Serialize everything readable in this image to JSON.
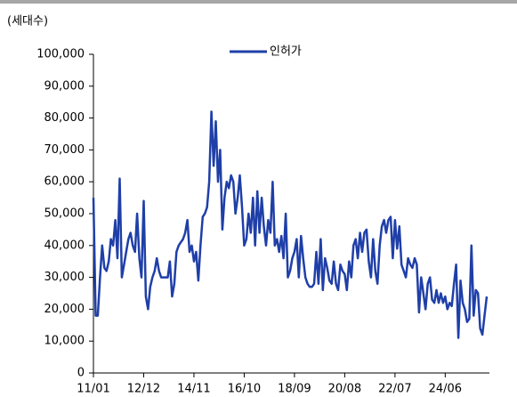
{
  "chart_data": {
    "type": "line",
    "y_axis_label": "(세대수)",
    "categories": [
      "11/01",
      null,
      null,
      null,
      null,
      null,
      null,
      null,
      null,
      null,
      null,
      null,
      null,
      null,
      null,
      null,
      null,
      null,
      null,
      null,
      null,
      null,
      null,
      "12/12",
      null,
      null,
      null,
      null,
      null,
      null,
      null,
      null,
      null,
      null,
      null,
      null,
      null,
      null,
      null,
      null,
      null,
      null,
      null,
      null,
      null,
      null,
      "14/11",
      null,
      null,
      null,
      null,
      null,
      null,
      null,
      null,
      null,
      null,
      null,
      null,
      null,
      null,
      null,
      null,
      null,
      null,
      null,
      null,
      null,
      null,
      "16/10",
      null,
      null,
      null,
      null,
      null,
      null,
      null,
      null,
      null,
      null,
      null,
      null,
      null,
      null,
      null,
      null,
      null,
      null,
      null,
      null,
      null,
      null,
      "18/09",
      null,
      null,
      null,
      null,
      null,
      null,
      null,
      null,
      null,
      null,
      null,
      null,
      null,
      null,
      null,
      null,
      null,
      null,
      null,
      null,
      null,
      null,
      "20/08",
      null,
      null,
      null,
      null,
      null,
      null,
      null,
      null,
      null,
      null,
      null,
      null,
      null,
      null,
      null,
      null,
      null,
      null,
      null,
      null,
      null,
      null,
      "22/07",
      null,
      null,
      null,
      null,
      null,
      null,
      null,
      null,
      null,
      null,
      null,
      null,
      null,
      null,
      null,
      null,
      null,
      null,
      null,
      null,
      null,
      null,
      "24/06",
      null,
      null,
      null,
      null,
      null,
      null,
      null,
      null,
      null,
      null,
      null,
      null,
      null,
      null,
      null,
      null,
      null,
      null,
      null
    ],
    "series": [
      {
        "name": "인허가",
        "color": "#1f3fa8",
        "values": [
          55000,
          18000,
          18000,
          30000,
          40000,
          33000,
          32000,
          35000,
          42000,
          40000,
          48000,
          36000,
          61000,
          30000,
          34000,
          38000,
          42000,
          44000,
          40000,
          38000,
          50000,
          36000,
          30000,
          54000,
          24000,
          20000,
          27000,
          30000,
          32000,
          36000,
          32000,
          30000,
          30000,
          30000,
          30000,
          35000,
          24000,
          28000,
          38000,
          40000,
          41000,
          42000,
          44000,
          48000,
          38000,
          40000,
          35000,
          38000,
          29000,
          40000,
          49000,
          50000,
          52000,
          60000,
          82000,
          65000,
          79000,
          60000,
          70000,
          45000,
          55000,
          60000,
          58000,
          62000,
          60000,
          50000,
          55000,
          62000,
          52000,
          40000,
          42000,
          50000,
          44000,
          55000,
          40000,
          57000,
          44000,
          55000,
          46000,
          40000,
          48000,
          44000,
          60000,
          40000,
          42000,
          38000,
          43000,
          36000,
          50000,
          30000,
          32000,
          36000,
          38000,
          42000,
          30000,
          43000,
          36000,
          30000,
          28000,
          27000,
          27000,
          28000,
          38000,
          28000,
          42000,
          26000,
          36000,
          33000,
          29000,
          28000,
          35000,
          28000,
          26000,
          34000,
          32000,
          31000,
          26000,
          35000,
          30000,
          40000,
          42000,
          36000,
          44000,
          38000,
          44000,
          45000,
          35000,
          30000,
          42000,
          32000,
          28000,
          40000,
          46000,
          48000,
          44000,
          48000,
          49000,
          36000,
          48000,
          39000,
          46000,
          34000,
          32000,
          30000,
          36000,
          34000,
          33000,
          36000,
          34000,
          19000,
          30000,
          25000,
          20000,
          28000,
          30000,
          23000,
          22000,
          26000,
          22000,
          25000,
          22000,
          24000,
          20000,
          22000,
          21000,
          28000,
          34000,
          11000,
          29000,
          22000,
          20000,
          16000,
          17000,
          40000,
          18000,
          26000,
          25000,
          14000,
          12000,
          18000,
          24000
        ]
      }
    ],
    "ylim": [
      0,
      100000
    ],
    "yticks": [
      0,
      {
        "value": 10000,
        "label": "10,000"
      },
      {
        "value": 20000,
        "label": "20,000"
      },
      {
        "value": 30000,
        "label": "30,000"
      },
      {
        "value": 40000,
        "label": "40,000"
      },
      {
        "value": 50000,
        "label": "50,000"
      },
      {
        "value": 60000,
        "label": "60,000"
      },
      {
        "value": 70000,
        "label": "70,000"
      },
      {
        "value": 80000,
        "label": "80,000"
      },
      {
        "value": 90000,
        "label": "90,000"
      },
      {
        "value": 100000,
        "label": "100,000"
      }
    ],
    "grid": false,
    "legend": "top"
  }
}
